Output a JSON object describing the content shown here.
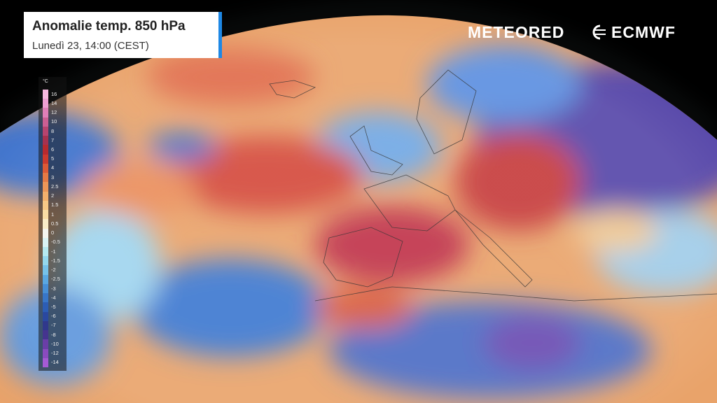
{
  "header": {
    "title": "Anomalie temp. 850 hPa",
    "subtitle": "Lunedì 23, 14:00 (CEST)"
  },
  "brands": {
    "meteored": "METEORED",
    "ecmwf": "ECMWF"
  },
  "legend": {
    "unit": "°C",
    "entries": [
      {
        "label": "16",
        "color": "#f7b8e0"
      },
      {
        "label": "14",
        "color": "#ee9fd2"
      },
      {
        "label": "12",
        "color": "#e07fb8"
      },
      {
        "label": "10",
        "color": "#cc5f93"
      },
      {
        "label": "8",
        "color": "#b8446f"
      },
      {
        "label": "7",
        "color": "#a8314f"
      },
      {
        "label": "6",
        "color": "#b82a2f"
      },
      {
        "label": "5",
        "color": "#cc3a2e"
      },
      {
        "label": "4",
        "color": "#dd5a36"
      },
      {
        "label": "3",
        "color": "#e57a45"
      },
      {
        "label": "2.5",
        "color": "#ec9658"
      },
      {
        "label": "2",
        "color": "#f2b06c"
      },
      {
        "label": "1.5",
        "color": "#f6c886"
      },
      {
        "label": "1",
        "color": "#f8dca4"
      },
      {
        "label": "0.5",
        "color": "#f9ecc8"
      },
      {
        "label": "0",
        "color": "#f4f4ee"
      },
      {
        "label": "-0.5",
        "color": "#daf3f4"
      },
      {
        "label": "-1",
        "color": "#b6e9f0"
      },
      {
        "label": "-1.5",
        "color": "#94d8ee"
      },
      {
        "label": "-2",
        "color": "#76c2ea"
      },
      {
        "label": "-2.5",
        "color": "#5aa8e2"
      },
      {
        "label": "-3",
        "color": "#478fd6"
      },
      {
        "label": "-4",
        "color": "#3876c8"
      },
      {
        "label": "-5",
        "color": "#2c5db5"
      },
      {
        "label": "-6",
        "color": "#2a48a0"
      },
      {
        "label": "-7",
        "color": "#30388c"
      },
      {
        "label": "-8",
        "color": "#45348f"
      },
      {
        "label": "-10",
        "color": "#6a3ea8"
      },
      {
        "label": "-12",
        "color": "#8a4bc0"
      },
      {
        "label": "-14",
        "color": "#a65ad4"
      }
    ]
  }
}
